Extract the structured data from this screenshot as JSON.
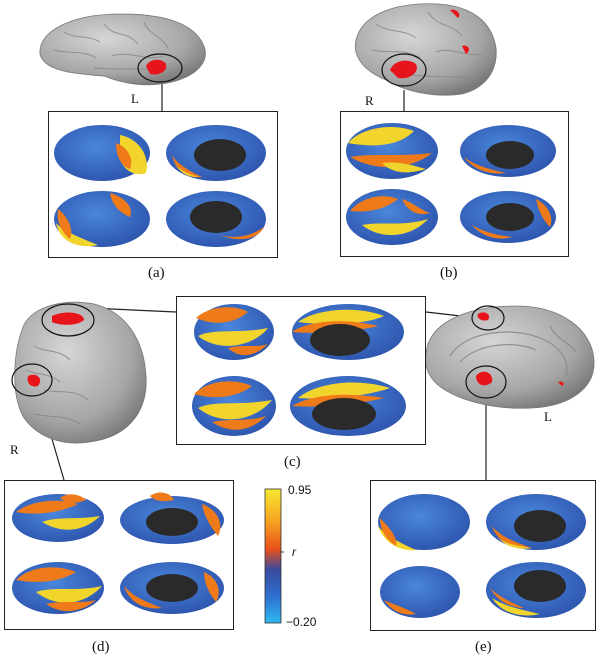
{
  "panels": [
    {
      "id": "a",
      "caption": "(a)",
      "hemisphere": "L"
    },
    {
      "id": "b",
      "caption": "(b)",
      "hemisphere": "R"
    },
    {
      "id": "c",
      "caption": "(c)",
      "hemisphere": "R"
    },
    {
      "id": "d",
      "caption": "(d)"
    },
    {
      "id": "e",
      "caption": "(e)",
      "hemisphere": "L"
    }
  ],
  "colorbar": {
    "max_label": "0.95",
    "mid_label": "r",
    "min_label": "−0.20",
    "colors": [
      "#f7e830",
      "#f5a020",
      "#e8501c",
      "#3a4a9c",
      "#2e6fd0",
      "#2fb8ef"
    ]
  },
  "colors": {
    "brain_gray": "#a9a9a9",
    "seed_red": "#e8141c",
    "map_blue": "#3768c8",
    "map_orange": "#ee7a1a",
    "map_yellow": "#f2d52c",
    "medial_wall": "#2a2a2a"
  }
}
